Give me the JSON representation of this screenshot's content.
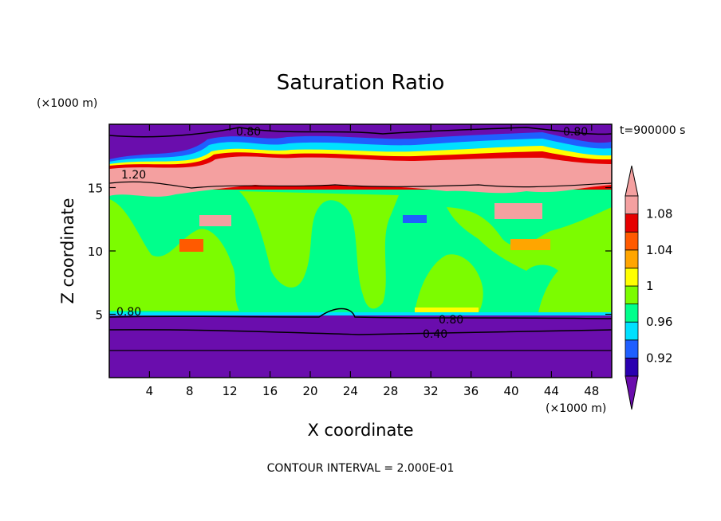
{
  "chart_data": {
    "type": "heatmap",
    "title": "Saturation Ratio",
    "xlabel": "X coordinate",
    "ylabel": "Z coordinate",
    "x_unit": "(×1000 m)",
    "y_unit": "(×1000 m)",
    "time_label": "t=900000 s",
    "contour_interval": "CONTOUR INTERVAL = 2.000E-01",
    "xlim": [
      0,
      50
    ],
    "ylim": [
      0,
      20
    ],
    "x_ticks": [
      4,
      8,
      12,
      16,
      20,
      24,
      28,
      32,
      36,
      40,
      44,
      48
    ],
    "y_ticks": [
      5,
      10,
      15
    ],
    "colorbar": {
      "tick_labels": [
        "1.08",
        "1.04",
        "1",
        "0.96",
        "0.92"
      ],
      "tick_values": [
        1.08,
        1.04,
        1.0,
        0.96,
        0.92
      ],
      "levels": [
        0.9,
        0.92,
        0.94,
        0.96,
        0.98,
        1.0,
        1.02,
        1.04,
        1.06,
        1.08,
        1.1
      ],
      "colors": [
        "#6a0dad",
        "#2a00b0",
        "#1f5fff",
        "#00e0ff",
        "#00ff8c",
        "#7cfc00",
        "#ffff00",
        "#ffa500",
        "#ff5a00",
        "#e60000",
        "#f4a0a0"
      ],
      "extend": "both"
    },
    "contour_labels": [
      "0.80",
      "0.80",
      "1.20",
      "0.80",
      "0.80",
      "0.40"
    ],
    "regions": [
      {
        "level": "below 0.90",
        "z_range": [
          0,
          4.8
        ],
        "description_color": "#6a0dad"
      },
      {
        "level": "0.98-1.00",
        "z_range": [
          4.8,
          14.5
        ],
        "description_color": "#00ff8c"
      },
      {
        "level": "1.00-1.02",
        "z_range": [
          5,
          14
        ],
        "description_color": "#7cfc00"
      },
      {
        "level": "above 1.10",
        "z_range": [
          14.5,
          18
        ],
        "description_color": "#f4a0a0"
      },
      {
        "level": "below 0.90",
        "z_range": [
          18,
          20
        ],
        "description_color": "#6a0dad"
      }
    ]
  }
}
